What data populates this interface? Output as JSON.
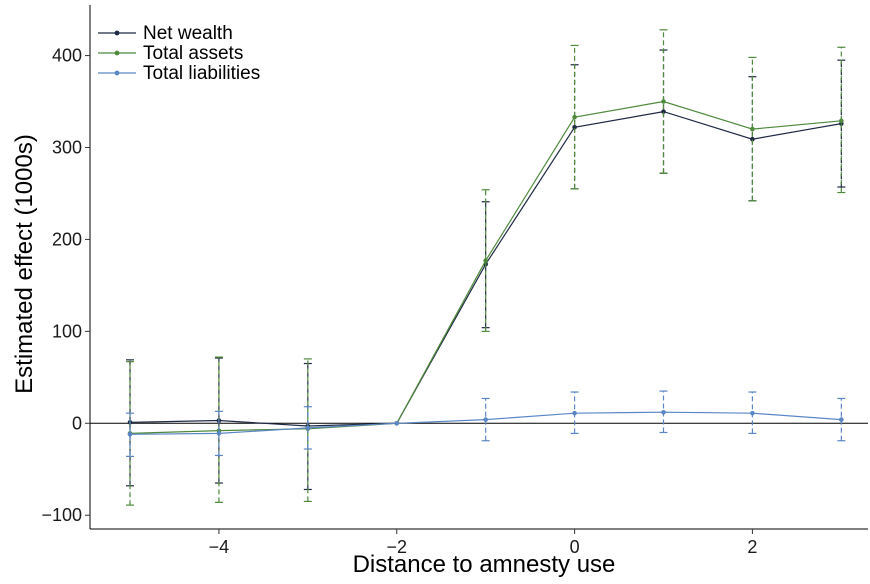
{
  "chart_data": {
    "type": "line",
    "title": "",
    "xlabel": "Distance to amnesty use",
    "ylabel": "Estimated effect (1000s)",
    "x": [
      -5,
      -4,
      -3,
      -2,
      -1,
      0,
      1,
      2,
      3
    ],
    "xlim": [
      -5.45,
      3.3
    ],
    "ylim": [
      -115,
      455
    ],
    "xticks": [
      -4,
      -2,
      0,
      2
    ],
    "xtick_labels": [
      "−4",
      "−2",
      "0",
      "2"
    ],
    "yticks": [
      -100,
      0,
      100,
      200,
      300,
      400
    ],
    "ytick_labels": [
      "−100",
      "0",
      "100",
      "200",
      "300",
      "400"
    ],
    "reference_line_y": 0,
    "grid": false,
    "legend_position": "top-left",
    "series": [
      {
        "name": "Net wealth",
        "color": "#1f2a44",
        "values": [
          1,
          3,
          -3,
          0,
          173,
          322,
          339,
          309,
          326
        ],
        "lower": [
          -68,
          -65,
          -72,
          0,
          104,
          255,
          272,
          242,
          257
        ],
        "upper": [
          69,
          71,
          65,
          0,
          241,
          390,
          406,
          377,
          395
        ]
      },
      {
        "name": "Total assets",
        "color": "#4f8a3c",
        "values": [
          -11,
          -8,
          -6,
          0,
          177,
          333,
          350,
          320,
          329
        ],
        "lower": [
          -89,
          -86,
          -85,
          0,
          100,
          255,
          272,
          242,
          251
        ],
        "upper": [
          67,
          72,
          70,
          0,
          254,
          411,
          428,
          398,
          409
        ]
      },
      {
        "name": "Total liabilities",
        "color": "#5b86c5",
        "values": [
          -12,
          -11,
          -5,
          0,
          4,
          11,
          12,
          11,
          4
        ],
        "lower": [
          -36,
          -35,
          -28,
          0,
          -19,
          -11,
          -10,
          -11,
          -19
        ],
        "upper": [
          11,
          13,
          18,
          0,
          27,
          34,
          35,
          34,
          27
        ]
      }
    ]
  }
}
